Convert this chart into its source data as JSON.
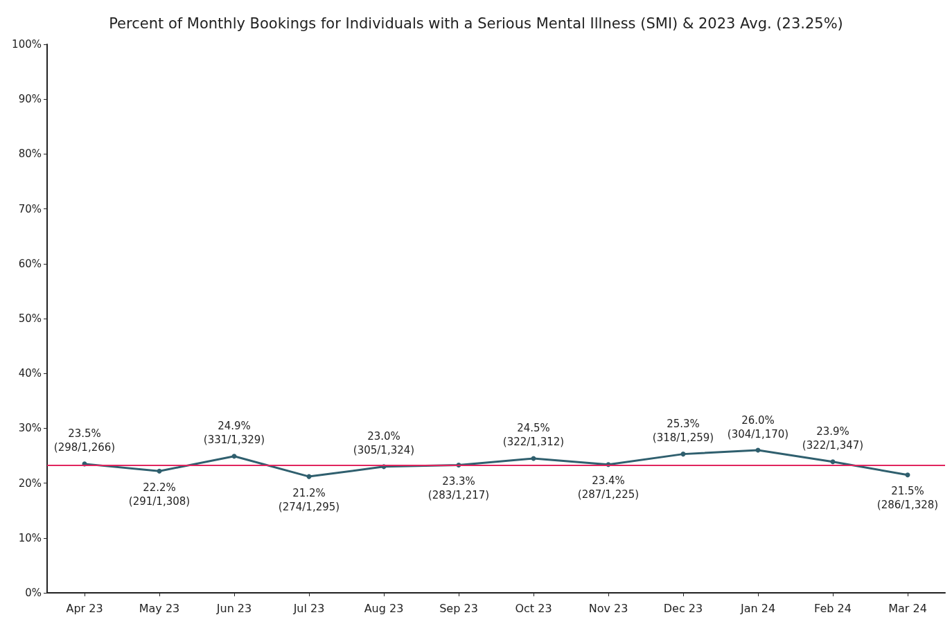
{
  "chart_data": {
    "type": "line",
    "title": "Percent of Monthly Bookings for Individuals with a Serious Mental Illness (SMI) & 2023 Avg. (23.25%)",
    "categories": [
      "Apr 23",
      "May 23",
      "Jun 23",
      "Jul 23",
      "Aug 23",
      "Sep 23",
      "Oct 23",
      "Nov 23",
      "Dec 23",
      "Jan 24",
      "Feb 24",
      "Mar 24"
    ],
    "series": [
      {
        "color": "#2f5f6e",
        "values": [
          23.5,
          22.2,
          24.9,
          21.2,
          23.0,
          23.3,
          24.5,
          23.4,
          25.3,
          26.0,
          23.9,
          21.5
        ],
        "value_labels": [
          "23.5%\n(298/1,266)",
          "22.2%\n(291/1,308)",
          "24.9%\n(331/1,329)",
          "21.2%\n(274/1,295)",
          "23.0%\n(305/1,324)",
          "23.3%\n(283/1,217)",
          "24.5%\n(322/1,312)",
          "23.4%\n(287/1,225)",
          "25.3%\n(318/1,259)",
          "26.0%\n(304/1,170)",
          "23.9%\n(322/1,347)",
          "21.5%\n(286/1,328)"
        ]
      }
    ],
    "ylim": [
      0,
      100
    ],
    "yticks": [
      {
        "value": 0,
        "label": "0%"
      },
      {
        "value": 10,
        "label": "10%"
      },
      {
        "value": 20,
        "label": "20%"
      },
      {
        "value": 30,
        "label": "30%"
      },
      {
        "value": 40,
        "label": "40%"
      },
      {
        "value": 50,
        "label": "50%"
      },
      {
        "value": 60,
        "label": "60%"
      },
      {
        "value": 70,
        "label": "70%"
      },
      {
        "value": 80,
        "label": "80%"
      },
      {
        "value": 90,
        "label": "90%"
      },
      {
        "value": 100,
        "label": "100%"
      }
    ],
    "ref_lines": [
      {
        "axis": "y",
        "value": 23.25,
        "color": "#e0245e"
      }
    ],
    "marker": "circle",
    "line_style": "solid"
  }
}
